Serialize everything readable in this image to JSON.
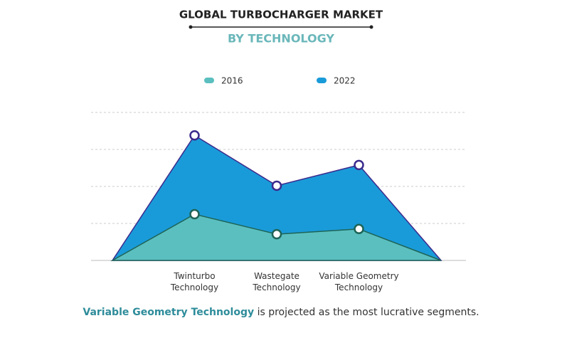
{
  "chart_data": {
    "type": "area",
    "title": "GLOBAL TURBOCHARGER MARKET",
    "subtitle": "BY TECHNOLOGY",
    "categories": [
      null,
      "Twinturbo Technology",
      "Wastegate Technology",
      "Variable Geometry Technology",
      null
    ],
    "series": [
      {
        "name": "2022",
        "color": "#1a9bd9",
        "line_color": "#3b2a8c",
        "values": [
          0,
          3.38,
          2.02,
          2.58,
          0
        ]
      },
      {
        "name": "2016",
        "color": "#5bbfbf",
        "line_color": "#1d6457",
        "values": [
          0,
          1.25,
          0.71,
          0.85,
          0
        ]
      }
    ],
    "legend_order": [
      1,
      0
    ],
    "ylim": [
      0,
      4
    ],
    "yticks": [
      0,
      1,
      2,
      3,
      4
    ],
    "grid": true,
    "annotation": {
      "highlight": "Variable Geometry Technology",
      "text": "is projected as the most lucrative segments."
    }
  }
}
